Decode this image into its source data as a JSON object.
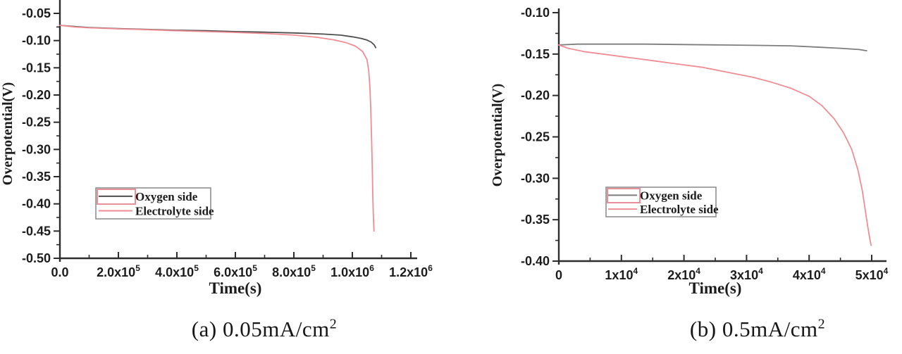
{
  "figure": {
    "background": "#ffffff",
    "axis_color": "#2d2d2d",
    "text_color": "#1c1c1c",
    "legend_border_color": "#8f8f8f",
    "legend_accent_color": "#e8909a"
  },
  "chart_data": [
    {
      "id": "a",
      "type": "line",
      "caption": {
        "index": "(a)",
        "value": "0.05mA/cm",
        "sup": "2"
      },
      "xlabel": "Time(s)",
      "ylabel": "Overpotential(V)",
      "xlim": [
        0,
        1200000
      ],
      "ylim": [
        -0.5,
        -0.05
      ],
      "grid": false,
      "legend_position": "lower-left-inside",
      "x_ticks": [
        {
          "v": 0,
          "t": "0.0"
        },
        {
          "v": 200000,
          "t": "2.0x10",
          "s": "5"
        },
        {
          "v": 400000,
          "t": "4.0x10",
          "s": "5"
        },
        {
          "v": 600000,
          "t": "6.0x10",
          "s": "5"
        },
        {
          "v": 800000,
          "t": "8.0x10",
          "s": "5"
        },
        {
          "v": 1000000,
          "t": "1.0x10",
          "s": "6"
        },
        {
          "v": 1200000,
          "t": "1.2x10",
          "s": "6"
        }
      ],
      "y_ticks": [
        {
          "v": -0.05,
          "t": "-0.05"
        },
        {
          "v": -0.1,
          "t": "-0.10"
        },
        {
          "v": -0.15,
          "t": "-0.15"
        },
        {
          "v": -0.2,
          "t": "-0.20"
        },
        {
          "v": -0.25,
          "t": "-0.25"
        },
        {
          "v": -0.3,
          "t": "-0.30"
        },
        {
          "v": -0.35,
          "t": "-0.35"
        },
        {
          "v": -0.4,
          "t": "-0.40"
        },
        {
          "v": -0.45,
          "t": "-0.45"
        },
        {
          "v": -0.5,
          "t": "-0.50"
        }
      ],
      "series": [
        {
          "name": "Oxygen side",
          "color": "#4e4e4e",
          "points": [
            [
              0,
              -0.072
            ],
            [
              50000,
              -0.074
            ],
            [
              100000,
              -0.076
            ],
            [
              200000,
              -0.078
            ],
            [
              300000,
              -0.0795
            ],
            [
              400000,
              -0.081
            ],
            [
              500000,
              -0.082
            ],
            [
              600000,
              -0.0835
            ],
            [
              700000,
              -0.0845
            ],
            [
              800000,
              -0.086
            ],
            [
              900000,
              -0.088
            ],
            [
              960000,
              -0.09
            ],
            [
              1000000,
              -0.093
            ],
            [
              1030000,
              -0.096
            ],
            [
              1050000,
              -0.099
            ],
            [
              1065000,
              -0.103
            ],
            [
              1075000,
              -0.108
            ],
            [
              1080000,
              -0.113
            ]
          ]
        },
        {
          "name": "Electrolyte side",
          "color": "#ee8e94",
          "points": [
            [
              0,
              -0.072
            ],
            [
              50000,
              -0.075
            ],
            [
              100000,
              -0.0765
            ],
            [
              200000,
              -0.0785
            ],
            [
              300000,
              -0.08
            ],
            [
              400000,
              -0.082
            ],
            [
              500000,
              -0.0835
            ],
            [
              600000,
              -0.085
            ],
            [
              700000,
              -0.087
            ],
            [
              800000,
              -0.09
            ],
            [
              880000,
              -0.094
            ],
            [
              940000,
              -0.099
            ],
            [
              980000,
              -0.104
            ],
            [
              1010000,
              -0.11
            ],
            [
              1035000,
              -0.12
            ],
            [
              1050000,
              -0.135
            ],
            [
              1056000,
              -0.155
            ],
            [
              1060000,
              -0.185
            ],
            [
              1063000,
              -0.225
            ],
            [
              1066000,
              -0.285
            ],
            [
              1068000,
              -0.33
            ],
            [
              1070000,
              -0.385
            ],
            [
              1072000,
              -0.425
            ],
            [
              1074000,
              -0.45
            ]
          ]
        }
      ]
    },
    {
      "id": "b",
      "type": "line",
      "caption": {
        "index": "(b)",
        "value": "0.5mA/cm",
        "sup": "2"
      },
      "xlabel": "Time(s)",
      "ylabel": "Overpotential(V)",
      "xlim": [
        0,
        50000
      ],
      "ylim": [
        -0.4,
        -0.1
      ],
      "grid": false,
      "legend_position": "center-right-inside",
      "x_ticks": [
        {
          "v": 0,
          "t": "0"
        },
        {
          "v": 10000,
          "t": "1x10",
          "s": "4"
        },
        {
          "v": 20000,
          "t": "2x10",
          "s": "4"
        },
        {
          "v": 30000,
          "t": "3x10",
          "s": "4"
        },
        {
          "v": 40000,
          "t": "4x10",
          "s": "4"
        },
        {
          "v": 50000,
          "t": "5x10",
          "s": "4"
        }
      ],
      "y_ticks": [
        {
          "v": -0.1,
          "t": "-0.10"
        },
        {
          "v": -0.15,
          "t": "-0.15"
        },
        {
          "v": -0.2,
          "t": "-0.20"
        },
        {
          "v": -0.25,
          "t": "-0.25"
        },
        {
          "v": -0.3,
          "t": "-0.30"
        },
        {
          "v": -0.35,
          "t": "-0.35"
        },
        {
          "v": -0.4,
          "t": "-0.40"
        }
      ],
      "series": [
        {
          "name": "Oxygen side",
          "color": "#7d7d7d",
          "points": [
            [
              0,
              -0.139
            ],
            [
              3000,
              -0.138
            ],
            [
              8000,
              -0.138
            ],
            [
              14000,
              -0.138
            ],
            [
              20000,
              -0.1385
            ],
            [
              26000,
              -0.139
            ],
            [
              32000,
              -0.1395
            ],
            [
              37000,
              -0.14
            ],
            [
              41000,
              -0.1415
            ],
            [
              45000,
              -0.143
            ],
            [
              48000,
              -0.1445
            ],
            [
              49200,
              -0.146
            ]
          ]
        },
        {
          "name": "Electrolyte side",
          "color": "#ee8e94",
          "points": [
            [
              0,
              -0.139
            ],
            [
              1500,
              -0.143
            ],
            [
              4000,
              -0.147
            ],
            [
              7000,
              -0.15
            ],
            [
              11000,
              -0.154
            ],
            [
              15000,
              -0.158
            ],
            [
              19000,
              -0.162
            ],
            [
              23000,
              -0.166
            ],
            [
              27000,
              -0.172
            ],
            [
              31000,
              -0.178
            ],
            [
              34000,
              -0.184
            ],
            [
              37000,
              -0.191
            ],
            [
              40000,
              -0.201
            ],
            [
              42000,
              -0.212
            ],
            [
              44000,
              -0.228
            ],
            [
              45500,
              -0.245
            ],
            [
              46800,
              -0.265
            ],
            [
              47800,
              -0.29
            ],
            [
              48500,
              -0.315
            ],
            [
              49000,
              -0.34
            ],
            [
              49400,
              -0.36
            ],
            [
              49700,
              -0.373
            ],
            [
              49900,
              -0.381
            ]
          ]
        }
      ]
    }
  ]
}
